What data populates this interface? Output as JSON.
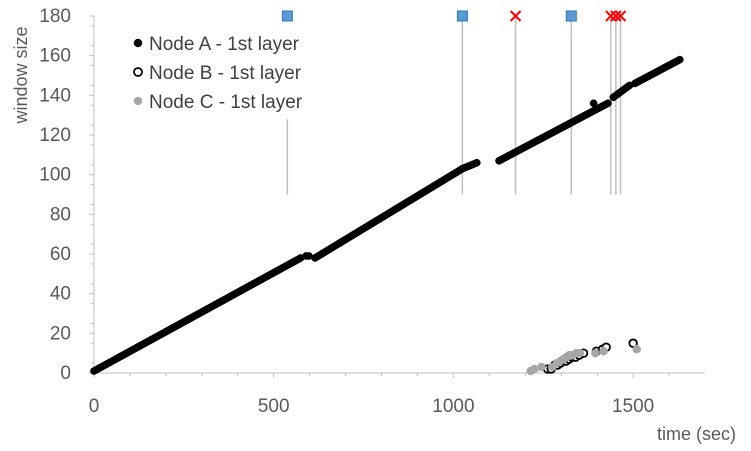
{
  "chart_data": {
    "type": "scatter",
    "xlabel": "time (sec)",
    "ylabel": "window size",
    "xlim": [
      0,
      1700
    ],
    "ylim": [
      0,
      180
    ],
    "x_ticks": [
      "0",
      "500",
      "1000",
      "1500"
    ],
    "y_ticks": [
      "0",
      "20",
      "40",
      "60",
      "80",
      "100",
      "120",
      "140",
      "160",
      "180"
    ],
    "grid": false,
    "legend_placement": "top-left",
    "colors": {
      "node_a": "#000000",
      "node_b_edge": "#000000",
      "node_b_fill": "#ffffff",
      "node_c": "#a6a6a6",
      "vline": "#bfbfbf",
      "square_fill": "#5b9bd5",
      "square_edge": "#2e75b6",
      "cross": "#ff0000",
      "axis": "#bfbfbf",
      "text": "#595959"
    },
    "series": [
      {
        "name": "Node A - 1st layer",
        "marker": "filled-circle",
        "segments": [
          {
            "x": [
              0,
              575
            ],
            "y": [
              1,
              58
            ]
          },
          {
            "x": [
              590,
              598
            ],
            "y": [
              59,
              59
            ]
          },
          {
            "x": [
              615,
              1025
            ],
            "y": [
              58,
              103
            ]
          },
          {
            "x": [
              1025,
              1065
            ],
            "y": [
              103,
              106
            ]
          },
          {
            "x": [
              1127,
              1430
            ],
            "y": [
              107,
              136
            ]
          },
          {
            "x": [
              1445,
              1490
            ],
            "y": [
              139,
              145
            ]
          },
          {
            "x": [
              1505,
              1630
            ],
            "y": [
              146,
              158
            ]
          }
        ],
        "points": [
          {
            "x": 1390,
            "y": 136
          }
        ]
      },
      {
        "name": "Node B - 1st layer",
        "marker": "hollow-circle",
        "points": [
          {
            "x": 1262,
            "y": 2
          },
          {
            "x": 1272,
            "y": 2
          },
          {
            "x": 1282,
            "y": 4
          },
          {
            "x": 1290,
            "y": 4
          },
          {
            "x": 1298,
            "y": 5
          },
          {
            "x": 1306,
            "y": 6
          },
          {
            "x": 1314,
            "y": 6
          },
          {
            "x": 1322,
            "y": 7
          },
          {
            "x": 1330,
            "y": 8
          },
          {
            "x": 1340,
            "y": 8
          },
          {
            "x": 1350,
            "y": 9
          },
          {
            "x": 1362,
            "y": 10
          },
          {
            "x": 1398,
            "y": 11
          },
          {
            "x": 1415,
            "y": 12
          },
          {
            "x": 1425,
            "y": 13
          },
          {
            "x": 1500,
            "y": 15
          }
        ]
      },
      {
        "name": "Node C - 1st layer",
        "marker": "grey-circle",
        "points": [
          {
            "x": 1215,
            "y": 1
          },
          {
            "x": 1225,
            "y": 2
          },
          {
            "x": 1245,
            "y": 3
          },
          {
            "x": 1275,
            "y": 3
          },
          {
            "x": 1288,
            "y": 5
          },
          {
            "x": 1298,
            "y": 6
          },
          {
            "x": 1306,
            "y": 7
          },
          {
            "x": 1314,
            "y": 8
          },
          {
            "x": 1322,
            "y": 9
          },
          {
            "x": 1332,
            "y": 9
          },
          {
            "x": 1342,
            "y": 10
          },
          {
            "x": 1352,
            "y": 10
          },
          {
            "x": 1395,
            "y": 10
          },
          {
            "x": 1418,
            "y": 11
          },
          {
            "x": 1510,
            "y": 12
          }
        ]
      }
    ],
    "vertical_lines": [
      {
        "x": 538,
        "y_from": 90,
        "y_to": 128,
        "cap": "square"
      },
      {
        "x": 1025,
        "y_from": 90,
        "y_to": 180,
        "cap": "square"
      },
      {
        "x": 1173,
        "y_from": 90,
        "y_to": 180,
        "cap": "cross"
      },
      {
        "x": 1328,
        "y_from": 90,
        "y_to": 180,
        "cap": "square"
      },
      {
        "x": 1438,
        "y_from": 90,
        "y_to": 180,
        "cap": "cross"
      },
      {
        "x": 1452,
        "y_from": 90,
        "y_to": 180,
        "cap": "cross"
      },
      {
        "x": 1465,
        "y_from": 90,
        "y_to": 180,
        "cap": "cross"
      }
    ]
  }
}
